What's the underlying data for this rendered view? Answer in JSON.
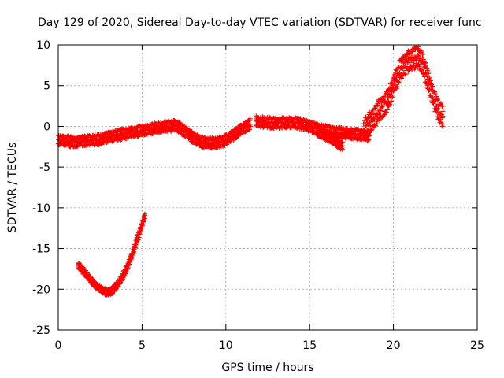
{
  "chart_data": {
    "type": "scatter",
    "title": "Day 129 of 2020, Sidereal Day-to-day VTEC variation (SDTVAR) for receiver func",
    "xlabel": "GPS time / hours",
    "ylabel": "SDTVAR / TECUs",
    "xlim": [
      0,
      25
    ],
    "ylim": [
      -25,
      10
    ],
    "xticks": [
      0,
      5,
      10,
      15,
      20,
      25
    ],
    "yticks": [
      -25,
      -20,
      -15,
      -10,
      -5,
      0,
      5,
      10
    ],
    "xtick_labels": [
      "0",
      "5",
      "10",
      "15",
      "20",
      "25"
    ],
    "ytick_labels": [
      "-25",
      "-20",
      "-15",
      "-10",
      "-5",
      "0",
      "5",
      "10"
    ],
    "grid": true,
    "series": [
      {
        "name": "SDTVAR",
        "color": "#ff0000",
        "marker": "plus",
        "band": 1.0,
        "x": [
          0,
          0.5,
          1,
          1.5,
          2,
          2.5,
          3,
          3.5,
          4,
          4.5,
          5,
          5.5,
          6,
          6.5,
          7,
          7.5,
          8,
          8.5,
          9,
          9.5,
          10,
          10.5,
          11,
          11.5
        ],
        "y": [
          -1.7,
          -1.8,
          -1.9,
          -1.8,
          -1.7,
          -1.6,
          -1.3,
          -1.1,
          -0.9,
          -0.7,
          -0.5,
          -0.3,
          -0.2,
          0.0,
          0.1,
          -0.5,
          -1.3,
          -1.9,
          -2.1,
          -2.0,
          -1.7,
          -1.0,
          -0.3,
          0.4
        ]
      },
      {
        "name": "SDTVAR",
        "color": "#ff0000",
        "marker": "plus",
        "band": 1.0,
        "x": [
          11.8,
          12.3,
          12.8,
          13.3,
          13.8,
          14.3,
          14.8,
          15.3,
          15.8,
          16.3,
          16.8,
          17.3,
          17.8,
          18.3,
          18.6
        ],
        "y": [
          0.6,
          0.5,
          0.4,
          0.4,
          0.5,
          0.4,
          0.1,
          -0.2,
          -0.5,
          -0.7,
          -0.8,
          -0.9,
          -1.0,
          -1.1,
          -1.2
        ]
      },
      {
        "name": "SDTVAR",
        "color": "#ff0000",
        "marker": "plus",
        "band": 0.8,
        "x": [
          15.5,
          15.8,
          16.1,
          16.4,
          16.7,
          17.0
        ],
        "y": [
          -0.7,
          -1.0,
          -1.4,
          -1.7,
          -2.1,
          -2.5
        ]
      },
      {
        "name": "SDTVAR",
        "color": "#ff0000",
        "marker": "plus",
        "band": 2.0,
        "x": [
          18.2,
          18.5,
          18.8,
          19.1,
          19.4,
          19.7,
          20.0,
          20.3,
          20.6,
          20.9,
          21.2,
          21.5,
          21.8,
          22.1,
          22.4,
          22.7,
          23.0
        ],
        "y": [
          -0.5,
          0.3,
          1.0,
          1.8,
          2.6,
          3.3,
          5.0,
          6.5,
          7.5,
          8.0,
          8.3,
          8.5,
          7.5,
          5.5,
          3.5,
          2.0,
          1.0
        ]
      },
      {
        "name": "SDTVAR",
        "color": "#ff0000",
        "marker": "plus",
        "band": 0.6,
        "x": [
          1.2,
          1.6,
          2.0,
          2.4,
          2.8,
          3.0,
          3.2,
          3.6,
          4.0,
          4.4,
          4.8,
          5.2
        ],
        "y": [
          -17.0,
          -18.0,
          -19.0,
          -19.8,
          -20.3,
          -20.4,
          -20.2,
          -19.3,
          -17.8,
          -15.8,
          -13.3,
          -10.8
        ]
      }
    ]
  }
}
